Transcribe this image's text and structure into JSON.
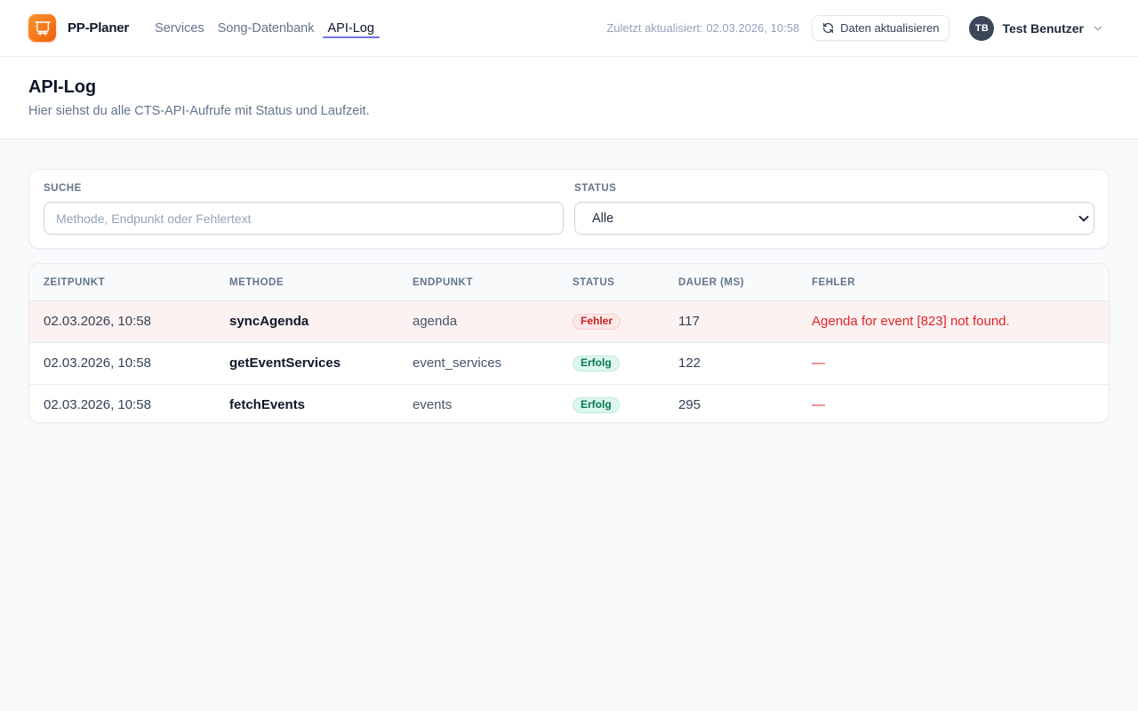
{
  "header": {
    "brand": "PP-Planer",
    "nav": [
      {
        "label": "Services",
        "active": false
      },
      {
        "label": "Song-Datenbank",
        "active": false
      },
      {
        "label": "API-Log",
        "active": true
      }
    ],
    "last_updated": "Zuletzt aktualisiert: 02.03.2026, 10:58",
    "refresh_button_label": "Daten aktualisieren",
    "user": {
      "initials": "TB",
      "name": "Test Benutzer"
    }
  },
  "page": {
    "title": "API-Log",
    "subtitle": "Hier siehst du alle CTS-API-Aufrufe mit Status und Laufzeit."
  },
  "filters": {
    "search_label": "SUCHE",
    "search_placeholder": "Methode, Endpunkt oder Fehlertext",
    "search_value": "",
    "status_label": "STATUS",
    "status_selected": "Alle"
  },
  "table": {
    "columns": [
      "ZEITPUNKT",
      "METHODE",
      "ENDPUNKT",
      "STATUS",
      "DAUER (MS)",
      "FEHLER"
    ],
    "rows": [
      {
        "timestamp": "02.03.2026, 10:58",
        "method": "syncAgenda",
        "endpoint": "agenda",
        "status": "Fehler",
        "status_kind": "error",
        "duration_ms": "117",
        "error": "Agenda for event [823] not found."
      },
      {
        "timestamp": "02.03.2026, 10:58",
        "method": "getEventServices",
        "endpoint": "event_services",
        "status": "Erfolg",
        "status_kind": "success",
        "duration_ms": "122",
        "error": "—"
      },
      {
        "timestamp": "02.03.2026, 10:58",
        "method": "fetchEvents",
        "endpoint": "events",
        "status": "Erfolg",
        "status_kind": "success",
        "duration_ms": "295",
        "error": "—"
      }
    ]
  },
  "colors": {
    "brand_orange_start": "#fa9330",
    "brand_orange_end": "#f06008",
    "nav_active_underline": "#6d74f0",
    "error_text": "#dc2626",
    "error_row_bg": "#fdf2f2",
    "error_badge_bg": "#fde8e8",
    "error_badge_text": "#c81e1e",
    "success_badge_bg": "#def7ec",
    "success_badge_text": "#047857"
  }
}
